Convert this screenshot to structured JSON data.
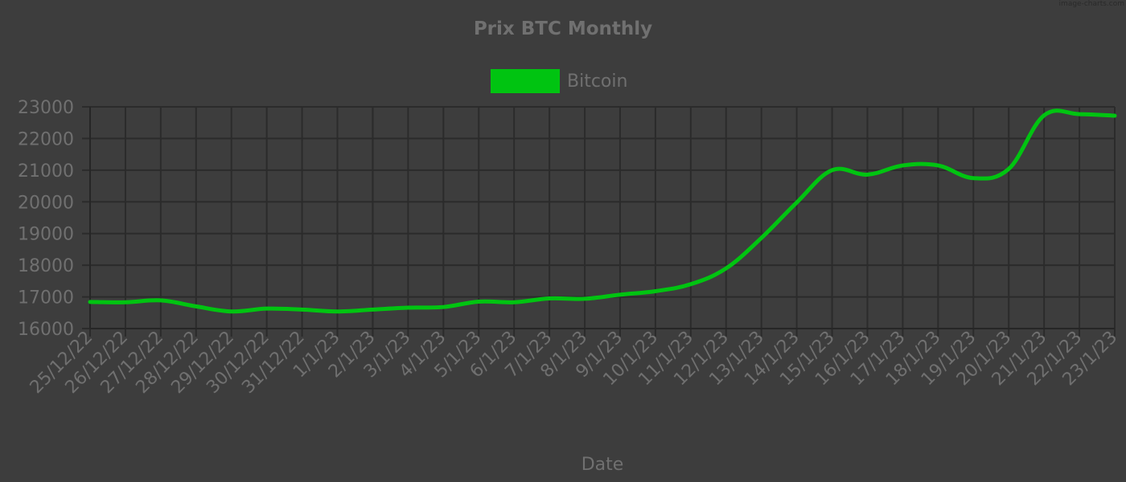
{
  "watermark": "image-charts.com",
  "colors": {
    "background": "#3d3d3d",
    "grid": "#2b2b2b",
    "axis": "#262626",
    "text": "#707070",
    "series": "#00c411"
  },
  "chart_data": {
    "type": "line",
    "title": "Prix BTC Monthly",
    "xlabel": "Date",
    "ylabel": "",
    "ylim": [
      16000,
      23000
    ],
    "yticks": [
      16000,
      17000,
      18000,
      19000,
      20000,
      21000,
      22000,
      23000
    ],
    "grid": true,
    "legend_position": "top-center",
    "categories": [
      "25/12/22",
      "26/12/22",
      "27/12/22",
      "28/12/22",
      "29/12/22",
      "30/12/22",
      "31/12/22",
      "1/1/23",
      "2/1/23",
      "3/1/23",
      "4/1/23",
      "5/1/23",
      "6/1/23",
      "7/1/23",
      "8/1/23",
      "9/1/23",
      "10/1/23",
      "11/1/23",
      "12/1/23",
      "13/1/23",
      "14/1/23",
      "15/1/23",
      "16/1/23",
      "17/1/23",
      "18/1/23",
      "19/1/23",
      "20/1/23",
      "21/1/23",
      "22/1/23",
      "23/1/23"
    ],
    "series": [
      {
        "name": "Bitcoin",
        "color": "#00c411",
        "values": [
          16840,
          16830,
          16890,
          16700,
          16540,
          16630,
          16600,
          16540,
          16600,
          16660,
          16680,
          16850,
          16830,
          16950,
          16940,
          17070,
          17180,
          17400,
          17900,
          18860,
          19980,
          21000,
          20860,
          21150,
          21150,
          20750,
          21040,
          22730,
          22770,
          22720
        ]
      }
    ]
  }
}
